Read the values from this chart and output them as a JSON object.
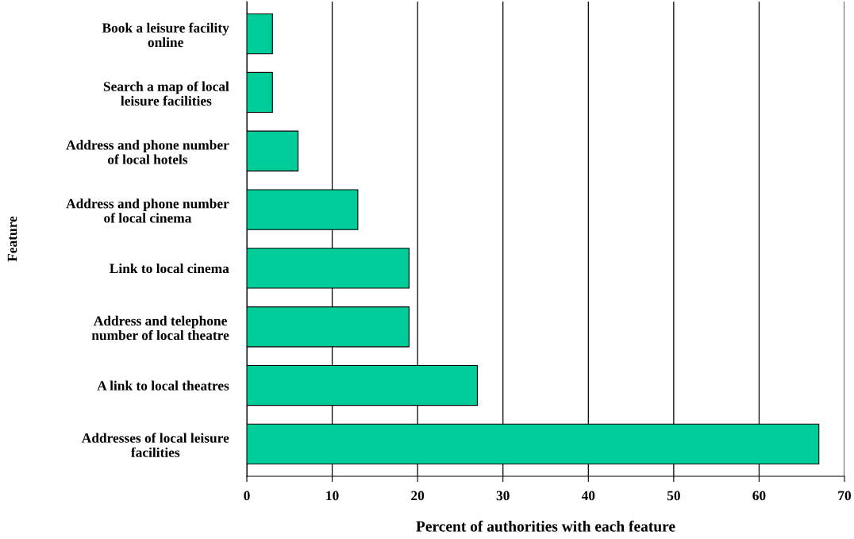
{
  "chart_data": {
    "type": "bar",
    "orientation": "horizontal",
    "categories": [
      "Book a leisure facility\nonline",
      "Search a map of local\nleisure facilities",
      "Address and phone number\nof local hotels",
      "Address and phone number\nof local cinema",
      "Link to local cinema",
      "Address and telephone\nnumber of local theatre",
      "A link to local theatres",
      "Addresses of local leisure\nfacilities"
    ],
    "values": [
      3,
      3,
      6,
      13,
      19,
      19,
      27,
      67
    ],
    "color": "#00cc99",
    "xlabel": "Percent of authorities with each feature",
    "ylabel": "Feature",
    "xlim": [
      0,
      70
    ],
    "xticks": [
      0,
      10,
      20,
      30,
      40,
      50,
      60,
      70
    ],
    "grid": "x"
  }
}
